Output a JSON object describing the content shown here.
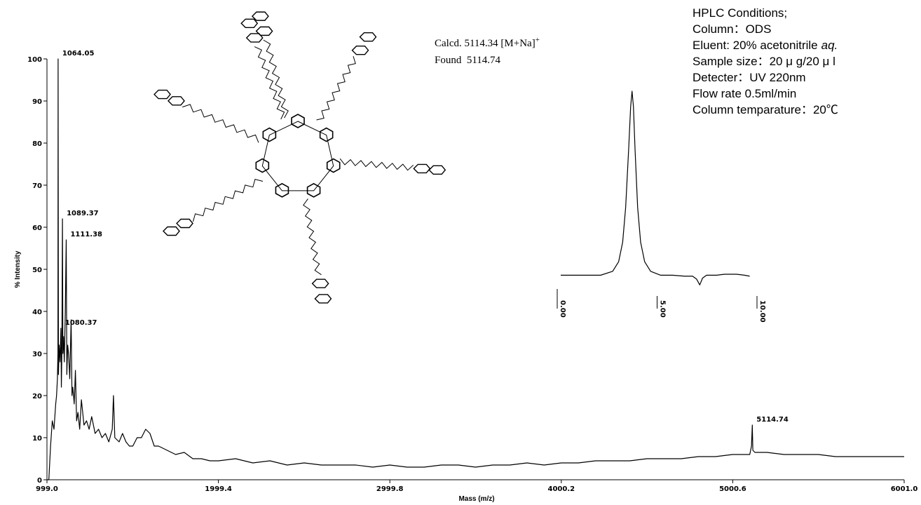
{
  "chart_data": [
    {
      "type": "line",
      "xlabel": "Mass (m/z)",
      "ylabel": "% Intensity",
      "xlim": [
        999,
        6001
      ],
      "ylim": [
        0,
        100
      ],
      "xticks": [
        {
          "value": 999,
          "label": "999.0"
        },
        1999.4,
        2999.8,
        4000.2,
        5000.6,
        {
          "value": 6001,
          "label": "6001.0"
        }
      ],
      "yticks": [
        0,
        10,
        20,
        30,
        40,
        50,
        60,
        70,
        80,
        90,
        100
      ],
      "x": [
        999,
        1010,
        1020,
        1030,
        1040,
        1050,
        1055,
        1060,
        1063,
        1064.05,
        1066,
        1070,
        1075,
        1080.37,
        1083,
        1086,
        1089.37,
        1092,
        1096,
        1100,
        1106,
        1111.38,
        1115,
        1120,
        1125,
        1132,
        1140,
        1145,
        1150,
        1158,
        1165,
        1172,
        1180,
        1190,
        1200,
        1215,
        1230,
        1245,
        1260,
        1280,
        1300,
        1320,
        1340,
        1360,
        1380,
        1387,
        1395,
        1420,
        1440,
        1460,
        1480,
        1500,
        1525,
        1550,
        1575,
        1600,
        1625,
        1650,
        1700,
        1750,
        1800,
        1850,
        1900,
        1950,
        2000,
        2100,
        2200,
        2300,
        2400,
        2500,
        2600,
        2700,
        2800,
        2900,
        3000,
        3100,
        3200,
        3300,
        3400,
        3500,
        3600,
        3700,
        3800,
        3900,
        4000,
        4100,
        4200,
        4300,
        4400,
        4500,
        4600,
        4700,
        4800,
        4900,
        5000,
        5050,
        5100,
        5110,
        5114.74,
        5118,
        5130,
        5200,
        5300,
        5400,
        5500,
        5600,
        5700,
        5800,
        5900,
        6001
      ],
      "series": [
        {
          "color": "#000000",
          "values": [
            0,
            0,
            8,
            14,
            12,
            18,
            20,
            24,
            30,
            100,
            25,
            32,
            28,
            36,
            22,
            30,
            62,
            30,
            34,
            28,
            40,
            57,
            25,
            32,
            30,
            24,
            38,
            20,
            22,
            18,
            26,
            14,
            16,
            12,
            19,
            13,
            14,
            12,
            15,
            11,
            12,
            10,
            11,
            9,
            12,
            20,
            10,
            9,
            11,
            9,
            8,
            8,
            10,
            10,
            12,
            11,
            8,
            8,
            7,
            6,
            6.5,
            5,
            5,
            4.5,
            4.5,
            5,
            4,
            4.5,
            3.5,
            4,
            3.5,
            3.5,
            3.5,
            3,
            3.5,
            3,
            3,
            3.5,
            3.5,
            3,
            3.5,
            3.5,
            4,
            3.5,
            4,
            4,
            4.5,
            4.5,
            4.5,
            5,
            5,
            5,
            5.5,
            5.5,
            6,
            6,
            6,
            8,
            13,
            7,
            6.5,
            6.5,
            6,
            6,
            6,
            5.5,
            5.5,
            5.5,
            5.5,
            5.5
          ]
        }
      ],
      "annotations": [
        {
          "text": "1064.05",
          "x": 1064.05,
          "y": 100
        },
        {
          "text": "1089.37",
          "x": 1089.37,
          "y": 62
        },
        {
          "text": "1111.38",
          "x": 1111.38,
          "y": 57
        },
        {
          "text": "1080.37",
          "x": 1080.37,
          "y": 36
        },
        {
          "text": "5114.74",
          "x": 5114.74,
          "y": 13
        }
      ]
    },
    {
      "type": "line",
      "xlim": [
        0,
        10
      ],
      "ylim": [
        -5,
        100
      ],
      "xticks": [
        {
          "value": 0,
          "label": "0.00"
        },
        {
          "value": 5,
          "label": "5.00"
        },
        {
          "value": 10,
          "label": "10.00"
        }
      ],
      "x": [
        0,
        1,
        2,
        2.6,
        2.9,
        3.1,
        3.25,
        3.4,
        3.5,
        3.57,
        3.64,
        3.72,
        3.85,
        4.0,
        4.2,
        4.5,
        5,
        5.6,
        6.2,
        6.6,
        6.8,
        6.96,
        7.1,
        7.3,
        7.8,
        8.2,
        8.8,
        9.2,
        9.46
      ],
      "series": [
        {
          "color": "#000000",
          "values": [
            5,
            5,
            5,
            7,
            12,
            22,
            40,
            70,
            92,
            100,
            92,
            70,
            40,
            22,
            12,
            7,
            5,
            5,
            4.5,
            4.5,
            3,
            0,
            3.5,
            5,
            5,
            5.5,
            5.5,
            5,
            4.5
          ]
        }
      ]
    }
  ],
  "mass_note": {
    "calcd": "Calcd. 5114.34 [M+Na]",
    "calcd_sup": "+",
    "found": "Found  5114.74"
  },
  "conditions": {
    "lines": [
      "HPLC Conditions;",
      "Column：ODS",
      "Eluent: 20% acetonitrile",
      "Sample size：20 μ g/20 μ l",
      "Detecter：UV  220nm",
      "Flow rate  0.5ml/min",
      "Column temparature：20℃"
    ],
    "eluent_italic": "aq."
  }
}
